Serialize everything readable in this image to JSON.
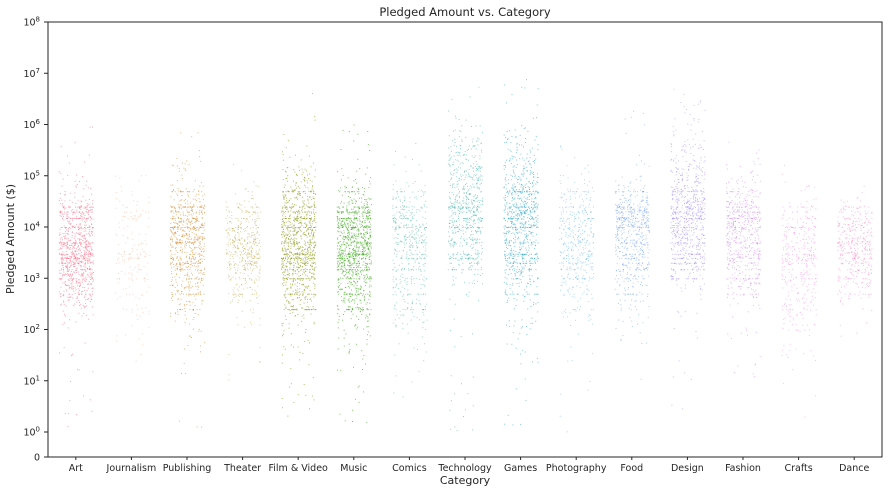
{
  "chart_data": {
    "type": "scatter",
    "subtype": "strip (jittered categorical scatter)",
    "title": "Pledged Amount vs. Category",
    "xlabel": "Category",
    "ylabel": "Pledged Amount ($)",
    "yscale": "symlog",
    "ylim": [
      0,
      100000000
    ],
    "grid": false,
    "legend": "none",
    "y_ticks": [
      {
        "value": 0,
        "label": "0"
      },
      {
        "value": 1,
        "label": "10",
        "exp": "0"
      },
      {
        "value": 10,
        "label": "10",
        "exp": "1"
      },
      {
        "value": 100,
        "label": "10",
        "exp": "2"
      },
      {
        "value": 1000,
        "label": "10",
        "exp": "3"
      },
      {
        "value": 10000,
        "label": "10",
        "exp": "4"
      },
      {
        "value": 100000,
        "label": "10",
        "exp": "5"
      },
      {
        "value": 1000000,
        "label": "10",
        "exp": "6"
      },
      {
        "value": 10000000,
        "label": "10",
        "exp": "7"
      },
      {
        "value": 100000000,
        "label": "10",
        "exp": "8"
      }
    ],
    "categories": [
      "Art",
      "Journalism",
      "Publishing",
      "Theater",
      "Film & Video",
      "Music",
      "Comics",
      "Technology",
      "Games",
      "Photography",
      "Food",
      "Design",
      "Fashion",
      "Crafts",
      "Dance"
    ],
    "series": [
      {
        "category": "Art",
        "color": "#f77189",
        "density": 0.85,
        "q10": 600,
        "q50": 3000,
        "q90": 20000,
        "min": 1,
        "max": 1000000,
        "point_count": 900
      },
      {
        "category": "Journalism",
        "color": "#f57f4f",
        "density": 0.15,
        "q10": 300,
        "q50": 3000,
        "q90": 30000,
        "min": 1,
        "max": 300000,
        "point_count": 180
      },
      {
        "category": "Publishing",
        "color": "#d58c32",
        "density": 0.75,
        "q10": 500,
        "q50": 5000,
        "q90": 30000,
        "min": 1,
        "max": 700000,
        "point_count": 800
      },
      {
        "category": "Theater",
        "color": "#b49a31",
        "density": 0.45,
        "q10": 700,
        "q50": 4000,
        "q90": 15000,
        "min": 10,
        "max": 200000,
        "point_count": 500
      },
      {
        "category": "Film & Video",
        "color": "#97a431",
        "density": 1.0,
        "q10": 500,
        "q50": 5000,
        "q90": 40000,
        "min": 1,
        "max": 5000000,
        "point_count": 1100
      },
      {
        "category": "Music",
        "color": "#50b131",
        "density": 1.0,
        "q10": 500,
        "q50": 4000,
        "q90": 25000,
        "min": 1,
        "max": 1000000,
        "point_count": 1100
      },
      {
        "category": "Comics",
        "color": "#34ae91",
        "density": 0.45,
        "q10": 400,
        "q50": 5000,
        "q90": 30000,
        "min": 3,
        "max": 600000,
        "point_count": 500
      },
      {
        "category": "Technology",
        "color": "#36ada4",
        "density": 0.6,
        "q10": 3000,
        "q50": 30000,
        "q90": 300000,
        "min": 1,
        "max": 6000000,
        "point_count": 700
      },
      {
        "category": "Games",
        "color": "#38a8c5",
        "density": 0.8,
        "q10": 1000,
        "q50": 15000,
        "q90": 150000,
        "min": 1,
        "max": 9000000,
        "point_count": 900
      },
      {
        "category": "Photography",
        "color": "#3ba3ec",
        "density": 0.35,
        "q10": 500,
        "q50": 5000,
        "q90": 30000,
        "min": 1,
        "max": 500000,
        "point_count": 450
      },
      {
        "category": "Food",
        "color": "#6e9bf4",
        "density": 0.6,
        "q10": 1000,
        "q50": 10000,
        "q90": 40000,
        "min": 10,
        "max": 2000000,
        "point_count": 650
      },
      {
        "category": "Design",
        "color": "#a48cf4",
        "density": 0.7,
        "q10": 2000,
        "q50": 20000,
        "q90": 200000,
        "min": 1,
        "max": 5000000,
        "point_count": 800
      },
      {
        "category": "Fashion",
        "color": "#cc7af4",
        "density": 0.55,
        "q10": 1000,
        "q50": 8000,
        "q90": 40000,
        "min": 10,
        "max": 1000000,
        "point_count": 600
      },
      {
        "category": "Crafts",
        "color": "#f45cd9",
        "density": 0.3,
        "q10": 200,
        "q50": 2000,
        "q90": 15000,
        "min": 1,
        "max": 200000,
        "point_count": 380
      },
      {
        "category": "Dance",
        "color": "#f66bb1",
        "density": 0.4,
        "q10": 1000,
        "q50": 4000,
        "q90": 15000,
        "min": 50,
        "max": 100000,
        "point_count": 420
      }
    ]
  }
}
